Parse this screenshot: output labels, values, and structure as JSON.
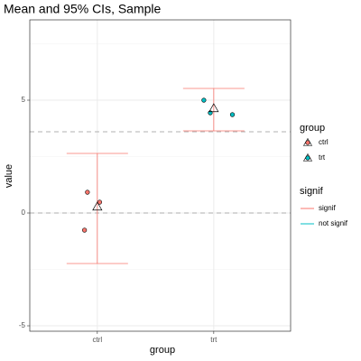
{
  "chart_data": {
    "type": "dot",
    "title": "Mean and 95% CIs, Sample",
    "x_label": "group",
    "y_label": "value",
    "xlim": [
      0.42,
      2.66
    ],
    "xticks": [
      {
        "value": 1,
        "label": "ctrl"
      },
      {
        "value": 2,
        "label": "trt"
      }
    ],
    "ylim": [
      -5.24,
      8.56
    ],
    "yticks": [
      -5,
      0,
      5
    ],
    "yminor": [
      -2.5,
      2.5,
      7.5
    ],
    "grid": true,
    "hlines": [
      0,
      3.6
    ],
    "legend_title": "group",
    "series": [
      {
        "name": "ctrl",
        "color": "#F8766D",
        "x": [
          0.915,
          1.02,
          0.89
        ],
        "values": [
          0.92,
          0.48,
          -0.76
        ]
      },
      {
        "name": "trt",
        "color": "#00BFC4",
        "x": [
          1.915,
          1.97,
          2.16
        ],
        "values": [
          5.0,
          4.44,
          4.36
        ]
      }
    ],
    "ci": [
      {
        "x": 1,
        "mean": 0.28,
        "low": -2.24,
        "high": 2.64,
        "signif": "signif"
      },
      {
        "x": 2,
        "mean": 4.64,
        "low": 3.64,
        "high": 5.52,
        "signif": "signif"
      }
    ],
    "ci_legend": {
      "title": "signif",
      "items": [
        {
          "name": "signif",
          "color": "#F8766D"
        },
        {
          "name": "not signif",
          "color": "#00BFC4"
        }
      ]
    }
  }
}
